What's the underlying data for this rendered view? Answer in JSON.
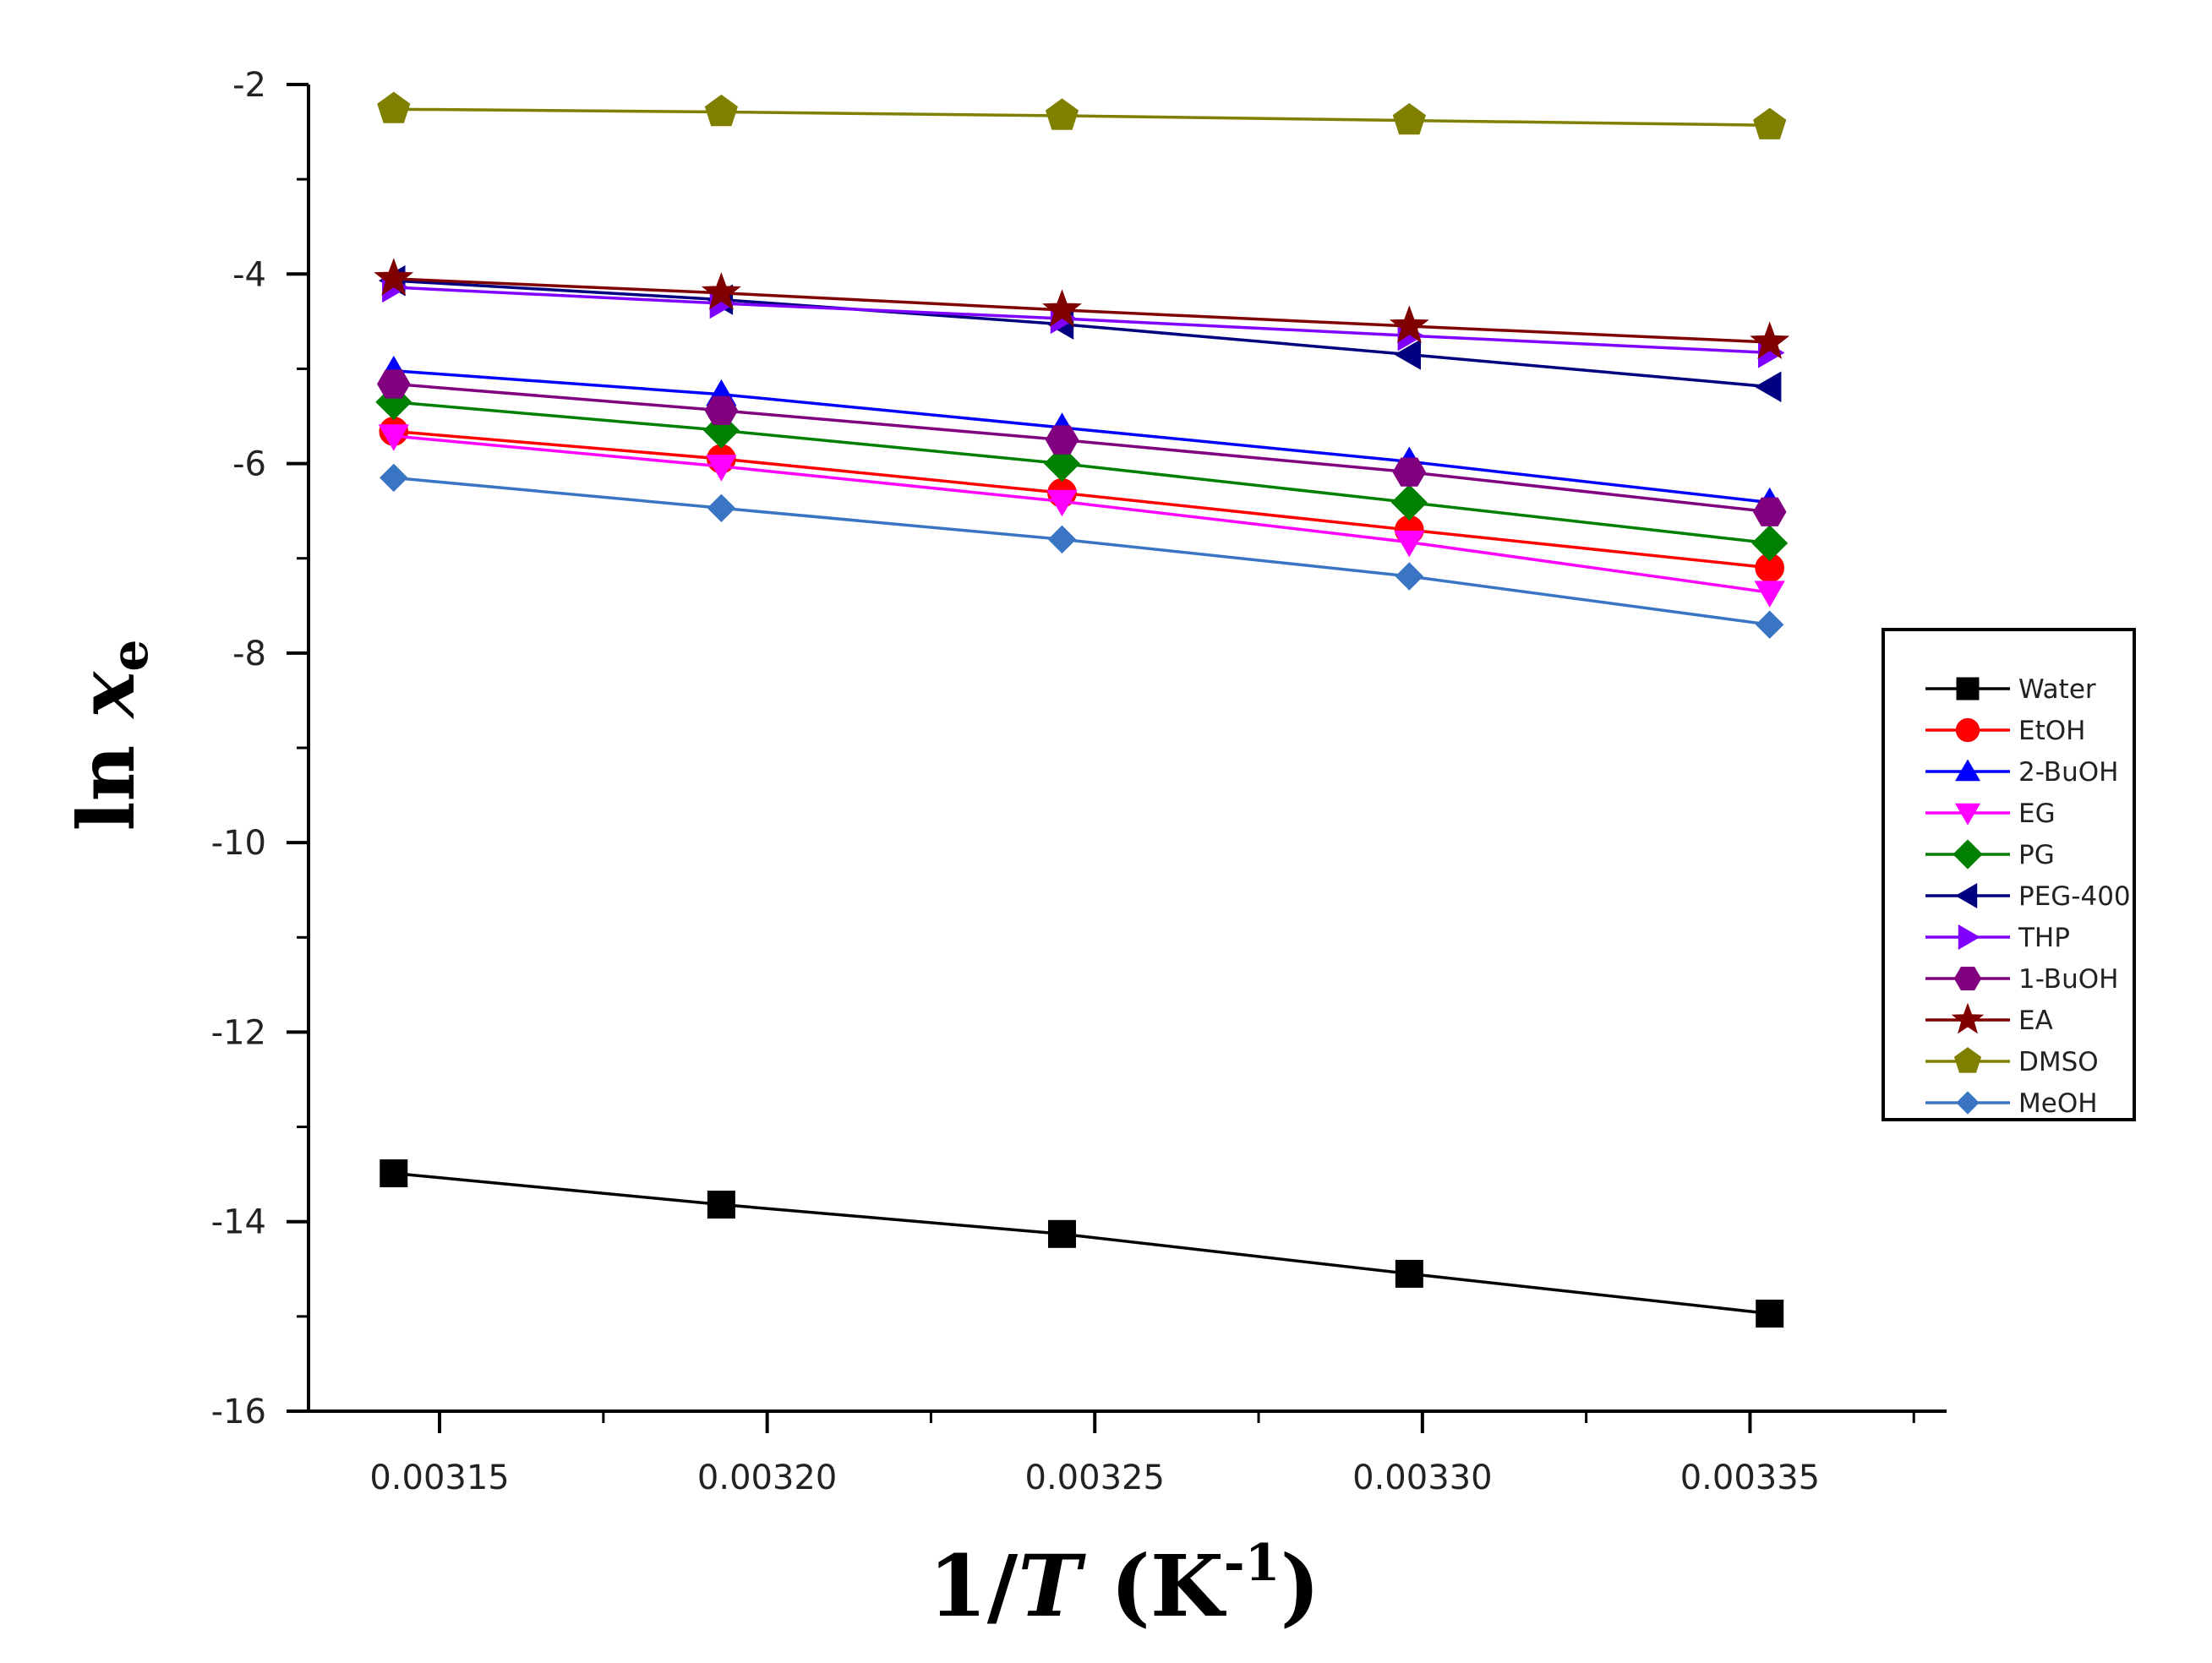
{
  "chart_data": {
    "type": "line",
    "title": "",
    "xlabel": "1/T (K-1)",
    "xlabel_parts": {
      "prefix": "1/",
      "var": "T",
      "unit_open": " (K",
      "sup": "-1",
      "unit_close": ")"
    },
    "ylabel": "ln xe",
    "ylabel_parts": {
      "prefix": "ln ",
      "var": "x",
      "sub": "e"
    },
    "xlim": [
      0.00313,
      0.00338
    ],
    "ylim": [
      -16,
      -2
    ],
    "xticks": [
      0.00315,
      0.0032,
      0.00325,
      0.0033,
      0.00335
    ],
    "xtick_labels": [
      "0.00315",
      "0.00320",
      "0.00325",
      "0.00330",
      "0.00335"
    ],
    "yticks": [
      -16,
      -14,
      -12,
      -10,
      -8,
      -6,
      -4,
      -2
    ],
    "ytick_labels": [
      "-16",
      "-14",
      "-12",
      "-10",
      "-8",
      "-6",
      "-4",
      "-2"
    ],
    "grid": false,
    "legend_position": "right",
    "x": [
      0.003143,
      0.003193,
      0.003245,
      0.003298,
      0.003353
    ],
    "series": [
      {
        "name": "Water",
        "color": "#000000",
        "marker": "square",
        "values": [
          -13.49,
          -13.82,
          -14.13,
          -14.55,
          -14.97
        ]
      },
      {
        "name": "EtOH",
        "color": "#ff0000",
        "marker": "circle",
        "values": [
          -5.66,
          -5.95,
          -6.31,
          -6.7,
          -7.1
        ]
      },
      {
        "name": "2-BuOH",
        "color": "#0000ff",
        "marker": "triangle-up",
        "values": [
          -5.02,
          -5.27,
          -5.62,
          -5.98,
          -6.41
        ]
      },
      {
        "name": "EG",
        "color": "#ff00ff",
        "marker": "triangle-down",
        "values": [
          -5.71,
          -6.03,
          -6.4,
          -6.83,
          -7.36
        ]
      },
      {
        "name": "PG",
        "color": "#008000",
        "marker": "diamond",
        "values": [
          -5.35,
          -5.65,
          -6.0,
          -6.41,
          -6.84
        ]
      },
      {
        "name": "PEG-400",
        "color": "#000080",
        "marker": "triangle-left",
        "values": [
          -4.07,
          -4.27,
          -4.53,
          -4.85,
          -5.19
        ]
      },
      {
        "name": "THP",
        "color": "#8000ff",
        "marker": "triangle-right",
        "values": [
          -4.14,
          -4.31,
          -4.47,
          -4.65,
          -4.83
        ]
      },
      {
        "name": "1-BuOH",
        "color": "#800080",
        "marker": "hexagon",
        "values": [
          -5.16,
          -5.44,
          -5.75,
          -6.09,
          -6.51
        ]
      },
      {
        "name": "EA",
        "color": "#800000",
        "marker": "star",
        "values": [
          -4.05,
          -4.2,
          -4.38,
          -4.55,
          -4.72
        ]
      },
      {
        "name": "DMSO",
        "color": "#808000",
        "marker": "pentagon",
        "values": [
          -2.26,
          -2.29,
          -2.33,
          -2.38,
          -2.43
        ]
      },
      {
        "name": "MeOH",
        "color": "#3a75c4",
        "marker": "small-diamond",
        "values": [
          -6.15,
          -6.47,
          -6.8,
          -7.19,
          -7.7
        ]
      }
    ]
  }
}
